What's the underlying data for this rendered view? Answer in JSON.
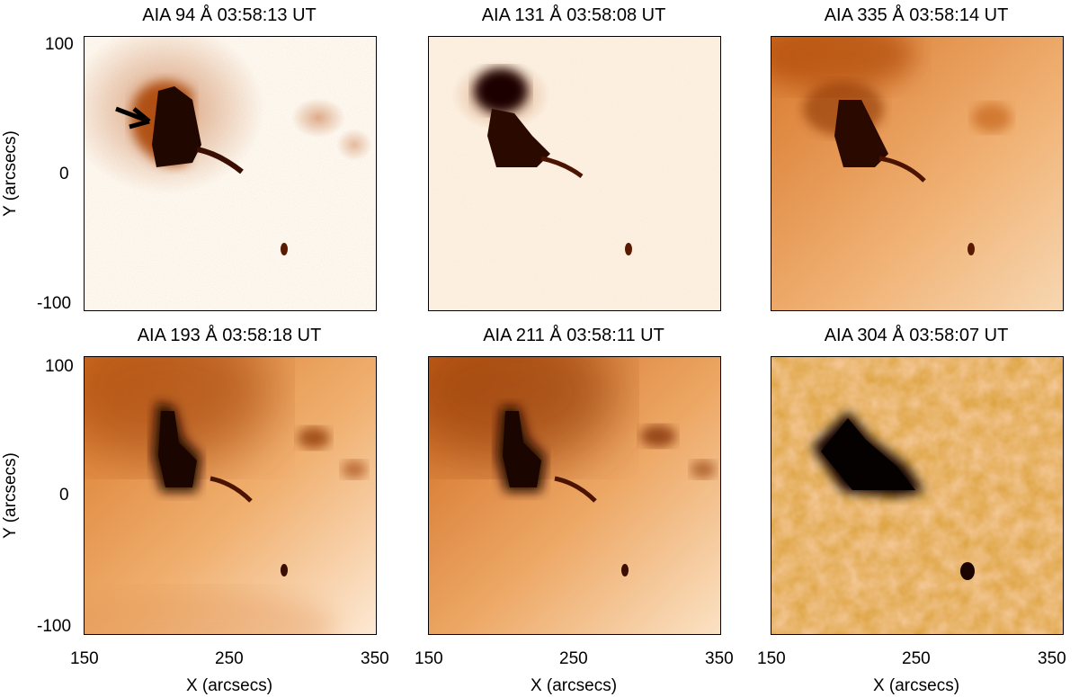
{
  "panels": [
    {
      "title": "AIA 94 Å 03:58:13 UT"
    },
    {
      "title": "AIA 131 Å 03:58:08 UT"
    },
    {
      "title": "AIA 335 Å 03:58:14 UT"
    },
    {
      "title": "AIA 193 Å 03:58:18 UT"
    },
    {
      "title": "AIA 211 Å 03:58:11 UT"
    },
    {
      "title": "AIA 304 Å 03:58:07 UT"
    }
  ],
  "axes": {
    "y_label": "Y (arcsecs)",
    "x_label": "X (arcsecs)",
    "y_ticks": [
      "100",
      "0",
      "-100"
    ],
    "x_ticks": [
      "150",
      "250",
      "350"
    ]
  },
  "colors": {
    "map_dark": "#1a0600",
    "map_mid": "#c45a10",
    "map_light": "#fbe3c8"
  }
}
